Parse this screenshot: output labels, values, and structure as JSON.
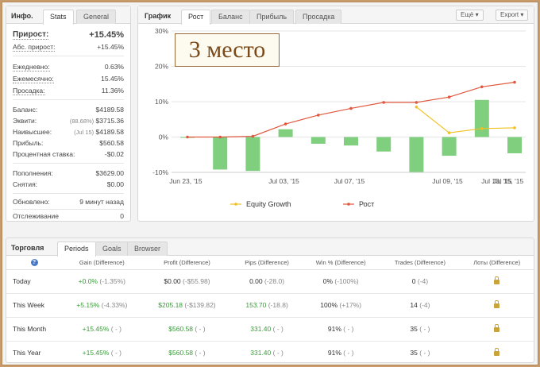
{
  "info": {
    "title": "Инфо.",
    "tabs": [
      "Stats",
      "General"
    ],
    "gain": {
      "label": "Прирост:",
      "value": "+15.45%"
    },
    "abs_gain": {
      "label": "Абс. прирост:",
      "value": "+15.45%"
    },
    "daily": {
      "label": "Ежедневно:",
      "value": "0.63%"
    },
    "monthly": {
      "label": "Ежемесячно:",
      "value": "15.45%"
    },
    "drawdown": {
      "label": "Просадка:",
      "value": "11.36%"
    },
    "balance": {
      "label": "Баланс:",
      "value": "$4189.58"
    },
    "equity": {
      "label": "Эквити:",
      "pct": "(88.68%)",
      "value": "$3715.36"
    },
    "highest": {
      "label": "Наивысшее:",
      "date": "(Jul 15)",
      "value": "$4189.58"
    },
    "profit": {
      "label": "Прибыль:",
      "value": "$560.58"
    },
    "interest": {
      "label": "Процентная ставка:",
      "value": "-$0.02"
    },
    "deposits": {
      "label": "Пополнения:",
      "value": "$3629.00"
    },
    "withdrawals": {
      "label": "Снятия:",
      "value": "$0.00"
    },
    "updated": {
      "label": "Обновлено:",
      "value": "9 минут назад"
    },
    "tracking": {
      "label": "Отслеживание",
      "value": "0"
    }
  },
  "chart_panel": {
    "title": "График",
    "tabs": [
      "Рост",
      "Баланс",
      "Прибыль",
      "Просадка"
    ],
    "more_button": "Ещё",
    "export_button": "Export",
    "overlay_text": "3 место"
  },
  "chart_data": {
    "type": "bar",
    "x_tick_labels": [
      "Jun 23, '15",
      "Jul 03, '15",
      "Jul 07, '15",
      "Jul 09, '15",
      "Jul 13, '15",
      "Jul 15, '15"
    ],
    "y_tick_labels": [
      "30%",
      "20%",
      "10%",
      "0%",
      "-10%"
    ],
    "ylim": [
      -10,
      30
    ],
    "bars": [
      0,
      -9.2,
      -9.6,
      2.2,
      -1.9,
      -2.4,
      -4.1,
      -10,
      -5.3,
      10.5,
      -4.6
    ],
    "series": [
      {
        "name": "Equity Growth",
        "color": "#f0c020",
        "x_index": [
          7,
          8,
          9,
          10
        ],
        "values": [
          8.5,
          1.2,
          2.4,
          2.6
        ]
      },
      {
        "name": "Рост",
        "color": "#e0583f",
        "x_index": [
          0,
          1,
          2,
          3,
          4,
          5,
          6,
          7,
          8,
          9,
          10
        ],
        "values": [
          0,
          0,
          0.2,
          3.7,
          6.2,
          8.1,
          9.8,
          9.8,
          11.3,
          14.2,
          15.5
        ]
      }
    ],
    "legend_placement": "bottom"
  },
  "trading": {
    "title": "Торговля",
    "tabs": [
      "Periods",
      "Goals",
      "Browser"
    ],
    "columns": [
      "Gain (Difference)",
      "Profit (Difference)",
      "Pips (Difference)",
      "Win % (Difference)",
      "Trades (Difference)",
      "Лоты (Difference)"
    ],
    "rows": [
      {
        "period": "Today",
        "gain": "+0.0%",
        "gain_diff": "(-1.35%)",
        "profit": "$0.00",
        "profit_diff": "(-$55.98)",
        "pips": "0.00",
        "pips_diff": "(-28.0)",
        "win": "0%",
        "win_diff": "(-100%)",
        "trades": "0",
        "trades_diff": "(-4)"
      },
      {
        "period": "This Week",
        "gain": "+5.15%",
        "gain_diff": "(-4.33%)",
        "profit": "$205.18",
        "profit_diff": "(-$139.82)",
        "pips": "153.70",
        "pips_diff": "(-18.8)",
        "win": "100%",
        "win_diff": "(+17%)",
        "trades": "14",
        "trades_diff": "(-4)"
      },
      {
        "period": "This Month",
        "gain": "+15.45%",
        "gain_diff": "( - )",
        "profit": "$560.58",
        "profit_diff": "( - )",
        "pips": "331.40",
        "pips_diff": "( - )",
        "win": "91%",
        "win_diff": "( - )",
        "trades": "35",
        "trades_diff": "( - )"
      },
      {
        "period": "This Year",
        "gain": "+15.45%",
        "gain_diff": "( - )",
        "profit": "$560.58",
        "profit_diff": "( - )",
        "pips": "331.40",
        "pips_diff": "( - )",
        "win": "91%",
        "win_diff": "( - )",
        "trades": "35",
        "trades_diff": "( - )"
      }
    ]
  }
}
